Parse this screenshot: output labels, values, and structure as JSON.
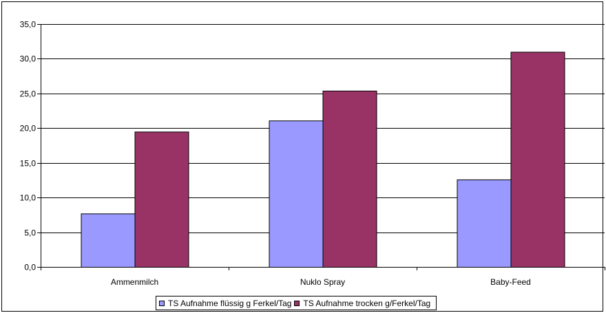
{
  "chart_data": {
    "type": "bar",
    "title": "",
    "xlabel": "",
    "ylabel": "",
    "categories": [
      "Ammenmilch",
      "Nuklo Spray",
      "Baby-Feed"
    ],
    "series": [
      {
        "name": "TS Aufnahme flüssig g Ferkel/Tag",
        "values": [
          7.7,
          21.1,
          12.6
        ],
        "color": "#9999ff"
      },
      {
        "name": "TS Aufnahme trocken g/Ferkel/Tag",
        "values": [
          19.5,
          25.4,
          31.0
        ],
        "color": "#993366"
      }
    ],
    "ylim": [
      0,
      35
    ],
    "yticks": [
      0,
      5,
      10,
      15,
      20,
      25,
      30,
      35
    ],
    "ytick_labels": [
      "0,0",
      "5,0",
      "10,0",
      "15,0",
      "20,0",
      "25,0",
      "30,0",
      "35,0"
    ],
    "grid": true,
    "legend_position": "bottom"
  }
}
